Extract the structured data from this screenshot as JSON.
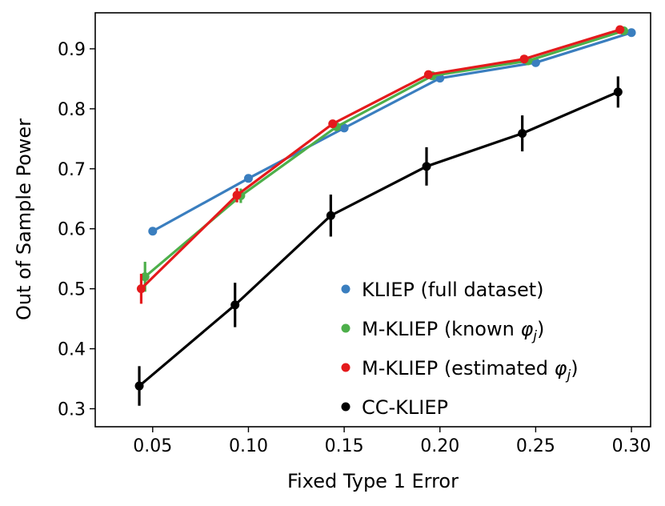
{
  "chart_data": {
    "type": "line",
    "xlabel": "Fixed Type 1 Error",
    "ylabel": "Out of Sample Power",
    "xlim": [
      0.02,
      0.31
    ],
    "ylim": [
      0.27,
      0.96
    ],
    "xticks": [
      0.05,
      0.1,
      0.15,
      0.2,
      0.25,
      0.3
    ],
    "xtick_labels": [
      "0.05",
      "0.10",
      "0.15",
      "0.20",
      "0.25",
      "0.30"
    ],
    "yticks": [
      0.3,
      0.4,
      0.5,
      0.6,
      0.7,
      0.8,
      0.9
    ],
    "ytick_labels": [
      "0.3",
      "0.4",
      "0.5",
      "0.6",
      "0.7",
      "0.8",
      "0.9"
    ],
    "grid": false,
    "legend_position": "bottom-right",
    "series": [
      {
        "name": "KLIEP (full dataset)",
        "color": "#3a7ebf",
        "x": [
          0.05,
          0.1,
          0.15,
          0.2,
          0.25,
          0.3
        ],
        "y": [
          0.596,
          0.684,
          0.768,
          0.851,
          0.877,
          0.927
        ],
        "err": [
          0,
          0,
          0,
          0,
          0,
          0
        ]
      },
      {
        "name": "M-KLIEP (known φ_j)",
        "color": "#4daf4a",
        "x": [
          0.046,
          0.096,
          0.146,
          0.196,
          0.246,
          0.296
        ],
        "y": [
          0.52,
          0.655,
          0.77,
          0.855,
          0.88,
          0.93
        ],
        "err": [
          0.025,
          0.012,
          0,
          0,
          0,
          0
        ]
      },
      {
        "name": "M-KLIEP (estimated φ_j)",
        "color": "#e41a1c",
        "x": [
          0.044,
          0.094,
          0.144,
          0.194,
          0.244,
          0.294
        ],
        "y": [
          0.5,
          0.656,
          0.775,
          0.857,
          0.883,
          0.932
        ],
        "err": [
          0.025,
          0.012,
          0,
          0,
          0,
          0
        ]
      },
      {
        "name": "CC-KLIEP",
        "color": "#000000",
        "x": [
          0.043,
          0.093,
          0.143,
          0.193,
          0.243,
          0.293
        ],
        "y": [
          0.338,
          0.473,
          0.622,
          0.704,
          0.759,
          0.828
        ],
        "err": [
          0.033,
          0.037,
          0.035,
          0.032,
          0.03,
          0.026
        ]
      }
    ]
  }
}
